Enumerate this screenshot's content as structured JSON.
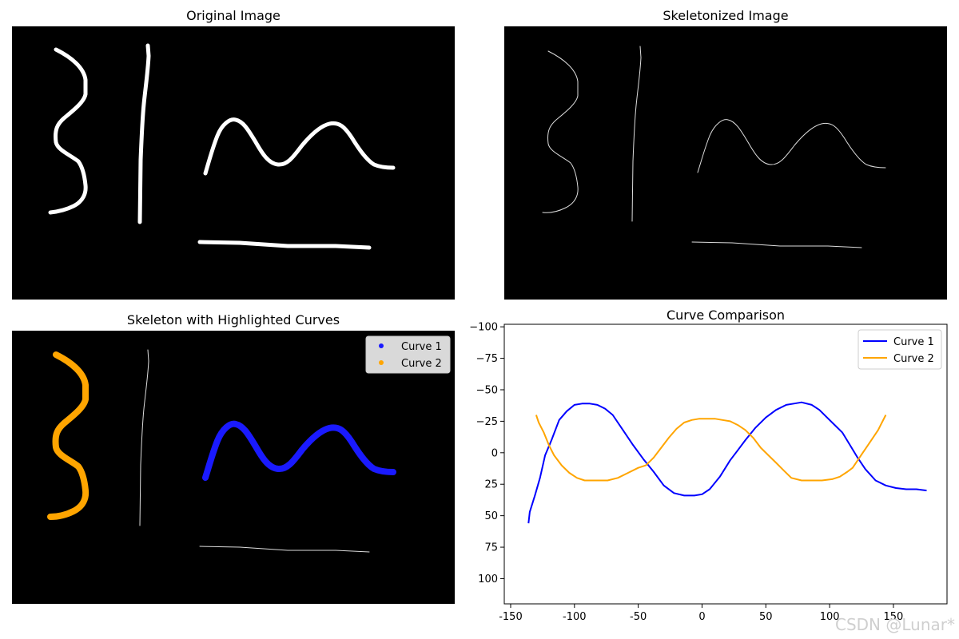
{
  "panels": {
    "original_title": "Original Image",
    "skeleton_title": "Skeletonized Image",
    "highlight_title": "Skeleton with Highlighted Curves",
    "highlight_legend": [
      {
        "label": "Curve 1",
        "color": "#1a1aff"
      },
      {
        "label": "Curve 2",
        "color": "#ffa500"
      }
    ]
  },
  "chart_data": {
    "type": "line",
    "title": "Curve Comparison",
    "xlabel": "",
    "ylabel": "",
    "xlim": [
      -155,
      192
    ],
    "ylim": [
      120,
      -102
    ],
    "y_inverted": true,
    "xticks": [
      -150,
      -100,
      -50,
      0,
      50,
      100,
      150
    ],
    "yticks": [
      -100,
      -75,
      -50,
      -25,
      0,
      25,
      50,
      75,
      100
    ],
    "legend_position": "top-right",
    "series": [
      {
        "name": "Curve 1",
        "color": "#0000ff",
        "x": [
          -136,
          -135,
          -131,
          -127,
          -123,
          -118,
          -112,
          -106,
          -100,
          -94,
          -88,
          -82,
          -76,
          -70,
          -62,
          -54,
          -46,
          -38,
          -30,
          -22,
          -14,
          -6,
          0,
          6,
          14,
          22,
          28,
          34,
          42,
          50,
          58,
          66,
          72,
          78,
          86,
          92,
          98,
          104,
          110,
          116,
          122,
          128,
          136,
          144,
          152,
          160,
          168,
          176
        ],
        "y": [
          56,
          47,
          34,
          20,
          2,
          -10,
          -26,
          -33,
          -38,
          -39,
          -39,
          -38,
          -35,
          -30,
          -18,
          -6,
          5,
          15,
          26,
          32,
          34,
          34,
          33,
          29,
          19,
          6,
          -2,
          -10,
          -20,
          -28,
          -34,
          -38,
          -39,
          -40,
          -38,
          -34,
          -28,
          -22,
          -16,
          -6,
          4,
          13,
          22,
          26,
          28,
          29,
          29,
          30
        ]
      },
      {
        "name": "Curve 2",
        "color": "#ffa500",
        "x": [
          -130,
          -128,
          -126,
          -124,
          -120,
          -116,
          -110,
          -104,
          -98,
          -92,
          -86,
          -80,
          -74,
          -66,
          -58,
          -50,
          -44,
          -38,
          -32,
          -26,
          -20,
          -14,
          -8,
          -2,
          4,
          10,
          16,
          22,
          28,
          34,
          40,
          46,
          52,
          58,
          64,
          70,
          78,
          86,
          94,
          102,
          108,
          114,
          118,
          122,
          126,
          130,
          134,
          138,
          140,
          144
        ],
        "y": [
          -30,
          -24,
          -20,
          -16,
          -6,
          2,
          10,
          16,
          20,
          22,
          22,
          22,
          22,
          20,
          16,
          12,
          10,
          4,
          -4,
          -12,
          -19,
          -24,
          -26,
          -27,
          -27,
          -27,
          -26,
          -25,
          -22,
          -18,
          -12,
          -4,
          2,
          8,
          14,
          20,
          22,
          22,
          22,
          21,
          19,
          15,
          12,
          6,
          0,
          -6,
          -12,
          -18,
          -22,
          -30
        ]
      }
    ]
  },
  "watermark": "CSDN @Lunar*"
}
